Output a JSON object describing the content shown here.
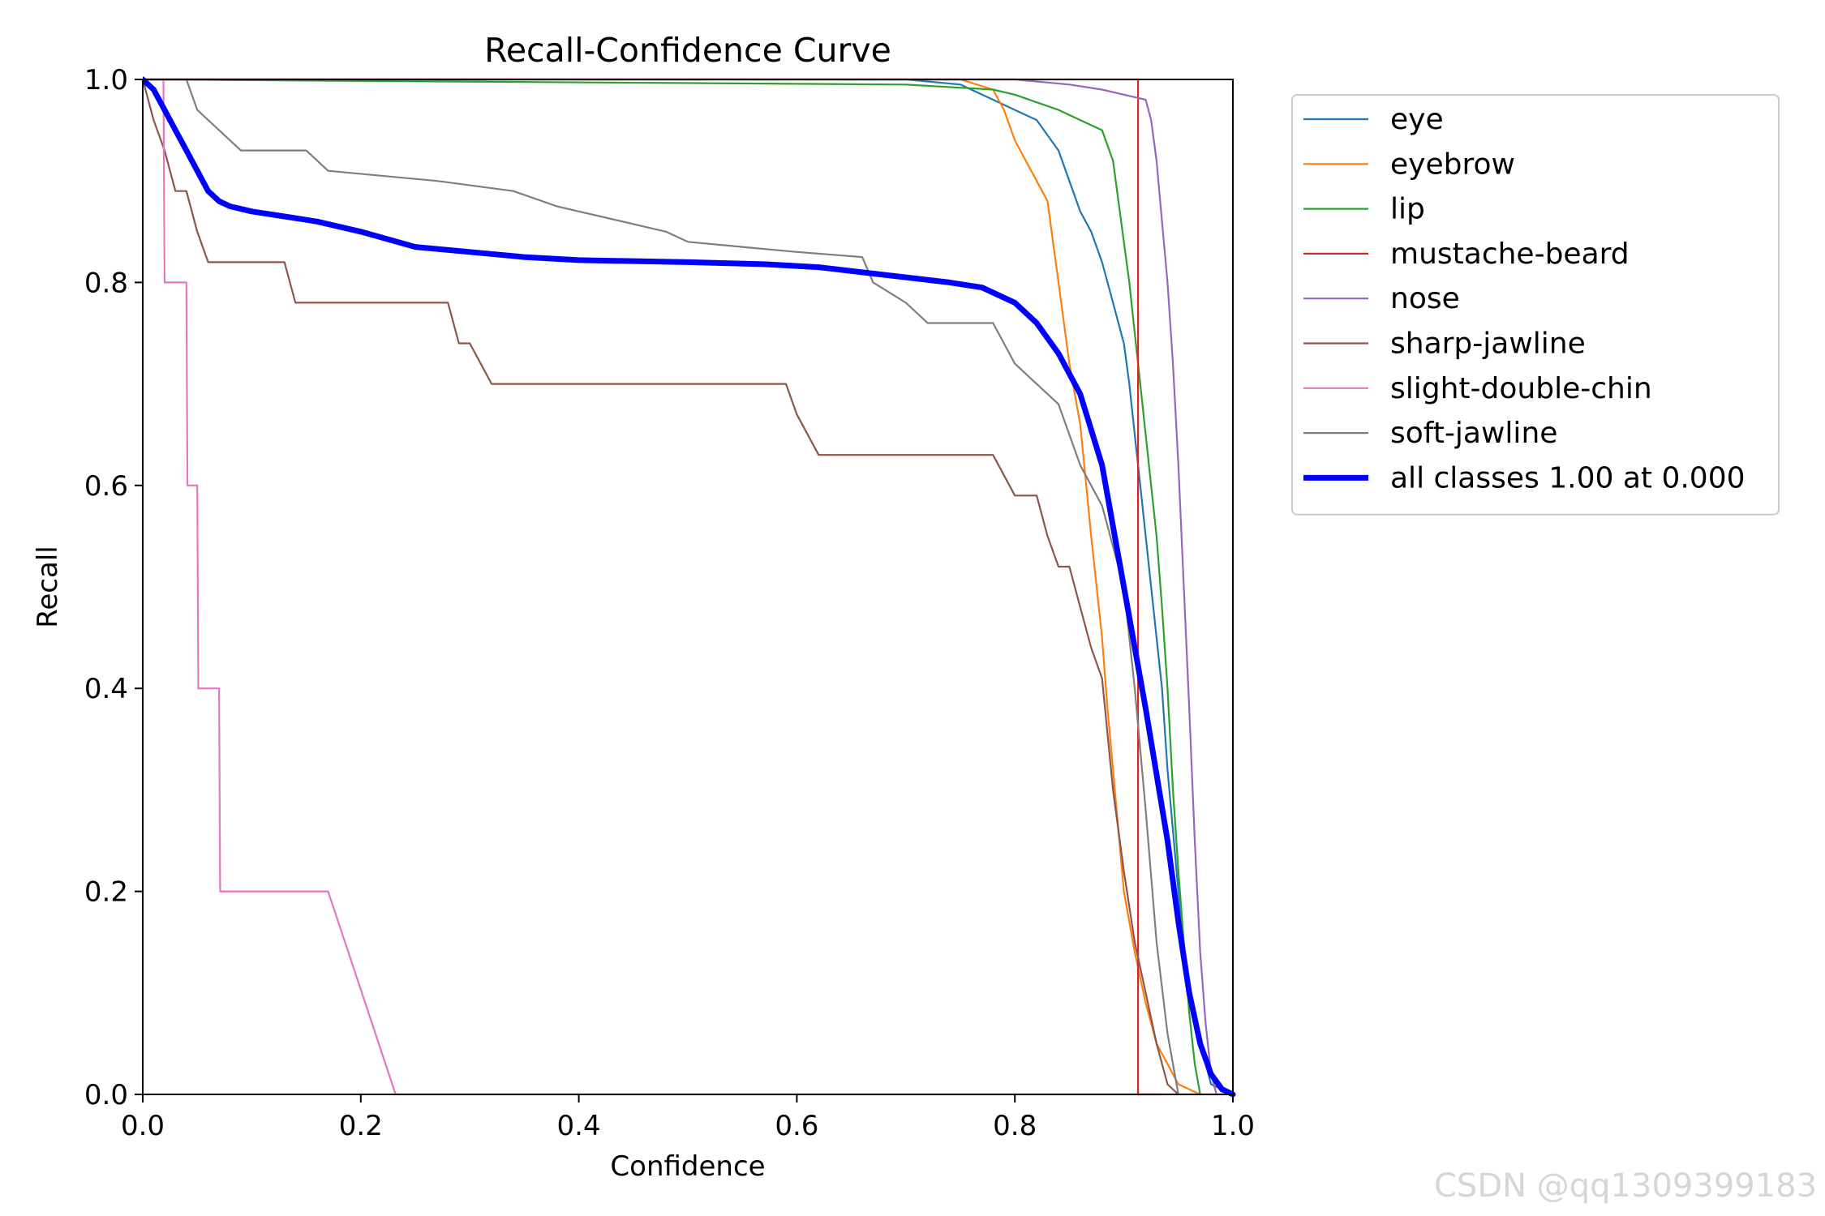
{
  "watermark": "CSDN @qq1309399183",
  "chart_data": {
    "type": "line",
    "title": "Recall-Confidence Curve",
    "xlabel": "Confidence",
    "ylabel": "Recall",
    "xlim": [
      0,
      1
    ],
    "ylim": [
      0,
      1
    ],
    "xticks": [
      "0.0",
      "0.2",
      "0.4",
      "0.6",
      "0.8",
      "1.0"
    ],
    "yticks": [
      "0.0",
      "0.2",
      "0.4",
      "0.6",
      "0.8",
      "1.0"
    ],
    "grid": false,
    "legend_position": "outside-right-top",
    "series": [
      {
        "name": "eye",
        "color": "#1f77b4",
        "width": 2.2,
        "x": [
          0.0,
          0.7,
          0.75,
          0.78,
          0.8,
          0.82,
          0.84,
          0.85,
          0.86,
          0.87,
          0.88,
          0.89,
          0.9,
          0.905,
          0.91,
          0.915,
          0.92,
          0.925,
          0.93,
          0.935,
          0.94,
          0.95,
          0.96,
          0.97,
          0.98,
          1.0
        ],
        "y": [
          1.0,
          1.0,
          0.995,
          0.98,
          0.97,
          0.96,
          0.93,
          0.9,
          0.87,
          0.85,
          0.82,
          0.78,
          0.74,
          0.7,
          0.65,
          0.6,
          0.55,
          0.5,
          0.45,
          0.4,
          0.32,
          0.2,
          0.1,
          0.05,
          0.01,
          0.0
        ]
      },
      {
        "name": "eyebrow",
        "color": "#ff7f0e",
        "width": 2.2,
        "x": [
          0.0,
          0.75,
          0.78,
          0.79,
          0.8,
          0.81,
          0.82,
          0.83,
          0.835,
          0.84,
          0.845,
          0.85,
          0.86,
          0.87,
          0.88,
          0.885,
          0.89,
          0.895,
          0.9,
          0.91,
          0.92,
          0.93,
          0.94,
          0.95,
          0.96,
          0.97
        ],
        "y": [
          1.0,
          1.0,
          0.99,
          0.97,
          0.94,
          0.92,
          0.9,
          0.88,
          0.84,
          0.8,
          0.76,
          0.72,
          0.66,
          0.55,
          0.45,
          0.38,
          0.32,
          0.26,
          0.2,
          0.14,
          0.09,
          0.05,
          0.03,
          0.01,
          0.005,
          0.0
        ]
      },
      {
        "name": "lip",
        "color": "#2ca02c",
        "width": 2.2,
        "x": [
          0.0,
          0.7,
          0.78,
          0.8,
          0.84,
          0.86,
          0.88,
          0.89,
          0.895,
          0.9,
          0.905,
          0.91,
          0.915,
          0.92,
          0.925,
          0.93,
          0.935,
          0.94,
          0.945,
          0.95,
          0.955,
          0.96,
          0.965,
          0.97
        ],
        "y": [
          1.0,
          0.995,
          0.99,
          0.985,
          0.97,
          0.96,
          0.95,
          0.92,
          0.88,
          0.84,
          0.8,
          0.75,
          0.7,
          0.65,
          0.6,
          0.55,
          0.48,
          0.4,
          0.3,
          0.22,
          0.15,
          0.08,
          0.03,
          0.0
        ]
      },
      {
        "name": "mustache-beard",
        "color": "#d62728",
        "width": 2.2,
        "x": [
          0.0,
          0.913,
          0.913,
          0.935
        ],
        "y": [
          1.0,
          1.0,
          0.0,
          0.0
        ]
      },
      {
        "name": "nose",
        "color": "#9467bd",
        "width": 2.2,
        "x": [
          0.0,
          0.8,
          0.85,
          0.88,
          0.9,
          0.92,
          0.925,
          0.93,
          0.935,
          0.94,
          0.945,
          0.95,
          0.955,
          0.96,
          0.965,
          0.97,
          0.975,
          0.98,
          0.985
        ],
        "y": [
          1.0,
          1.0,
          0.995,
          0.99,
          0.985,
          0.98,
          0.96,
          0.92,
          0.86,
          0.8,
          0.72,
          0.62,
          0.5,
          0.38,
          0.25,
          0.14,
          0.07,
          0.02,
          0.0
        ]
      },
      {
        "name": "sharp-jawline",
        "color": "#8c564b",
        "width": 2.2,
        "x": [
          0.0,
          0.01,
          0.02,
          0.03,
          0.04,
          0.05,
          0.06,
          0.1,
          0.13,
          0.14,
          0.28,
          0.29,
          0.3,
          0.32,
          0.59,
          0.6,
          0.62,
          0.78,
          0.8,
          0.82,
          0.83,
          0.84,
          0.85,
          0.86,
          0.87,
          0.88,
          0.89,
          0.9,
          0.91,
          0.92,
          0.93,
          0.94,
          0.95
        ],
        "y": [
          1.0,
          0.96,
          0.93,
          0.89,
          0.89,
          0.85,
          0.82,
          0.82,
          0.82,
          0.78,
          0.78,
          0.74,
          0.74,
          0.7,
          0.7,
          0.67,
          0.63,
          0.63,
          0.59,
          0.59,
          0.55,
          0.52,
          0.52,
          0.48,
          0.44,
          0.41,
          0.3,
          0.22,
          0.15,
          0.1,
          0.05,
          0.01,
          0.0
        ]
      },
      {
        "name": "slight-double-chin",
        "color": "#e377c2",
        "width": 2.2,
        "x": [
          0.0,
          0.019,
          0.02,
          0.04,
          0.041,
          0.05,
          0.051,
          0.07,
          0.071,
          0.17,
          0.232,
          1.0
        ],
        "y": [
          1.0,
          1.0,
          0.8,
          0.8,
          0.6,
          0.6,
          0.4,
          0.4,
          0.2,
          0.2,
          0.0,
          0.0
        ]
      },
      {
        "name": "soft-jawline",
        "color": "#7f7f7f",
        "width": 2.2,
        "x": [
          0.0,
          0.04,
          0.05,
          0.06,
          0.07,
          0.08,
          0.09,
          0.1,
          0.15,
          0.17,
          0.27,
          0.34,
          0.38,
          0.4,
          0.42,
          0.48,
          0.5,
          0.55,
          0.6,
          0.66,
          0.67,
          0.7,
          0.72,
          0.73,
          0.78,
          0.8,
          0.82,
          0.84,
          0.86,
          0.88,
          0.9,
          0.91,
          0.92,
          0.93,
          0.94,
          0.95
        ],
        "y": [
          1.0,
          1.0,
          0.97,
          0.96,
          0.95,
          0.94,
          0.93,
          0.93,
          0.93,
          0.91,
          0.9,
          0.89,
          0.875,
          0.87,
          0.865,
          0.85,
          0.84,
          0.835,
          0.83,
          0.825,
          0.8,
          0.78,
          0.76,
          0.76,
          0.76,
          0.72,
          0.7,
          0.68,
          0.62,
          0.58,
          0.5,
          0.4,
          0.28,
          0.15,
          0.06,
          0.0
        ]
      },
      {
        "name": "all classes 1.00 at 0.000",
        "color": "#0000ff",
        "width": 7,
        "x": [
          0.0,
          0.01,
          0.02,
          0.03,
          0.04,
          0.05,
          0.06,
          0.07,
          0.08,
          0.1,
          0.13,
          0.16,
          0.2,
          0.25,
          0.3,
          0.35,
          0.4,
          0.5,
          0.57,
          0.62,
          0.66,
          0.7,
          0.74,
          0.77,
          0.8,
          0.82,
          0.84,
          0.86,
          0.88,
          0.9,
          0.92,
          0.94,
          0.95,
          0.96,
          0.97,
          0.98,
          0.99,
          1.0
        ],
        "y": [
          1.0,
          0.99,
          0.97,
          0.95,
          0.93,
          0.91,
          0.89,
          0.88,
          0.875,
          0.87,
          0.865,
          0.86,
          0.85,
          0.835,
          0.83,
          0.825,
          0.822,
          0.82,
          0.818,
          0.815,
          0.81,
          0.805,
          0.8,
          0.795,
          0.78,
          0.76,
          0.73,
          0.69,
          0.62,
          0.5,
          0.38,
          0.25,
          0.17,
          0.1,
          0.05,
          0.02,
          0.005,
          0.0
        ]
      }
    ]
  }
}
